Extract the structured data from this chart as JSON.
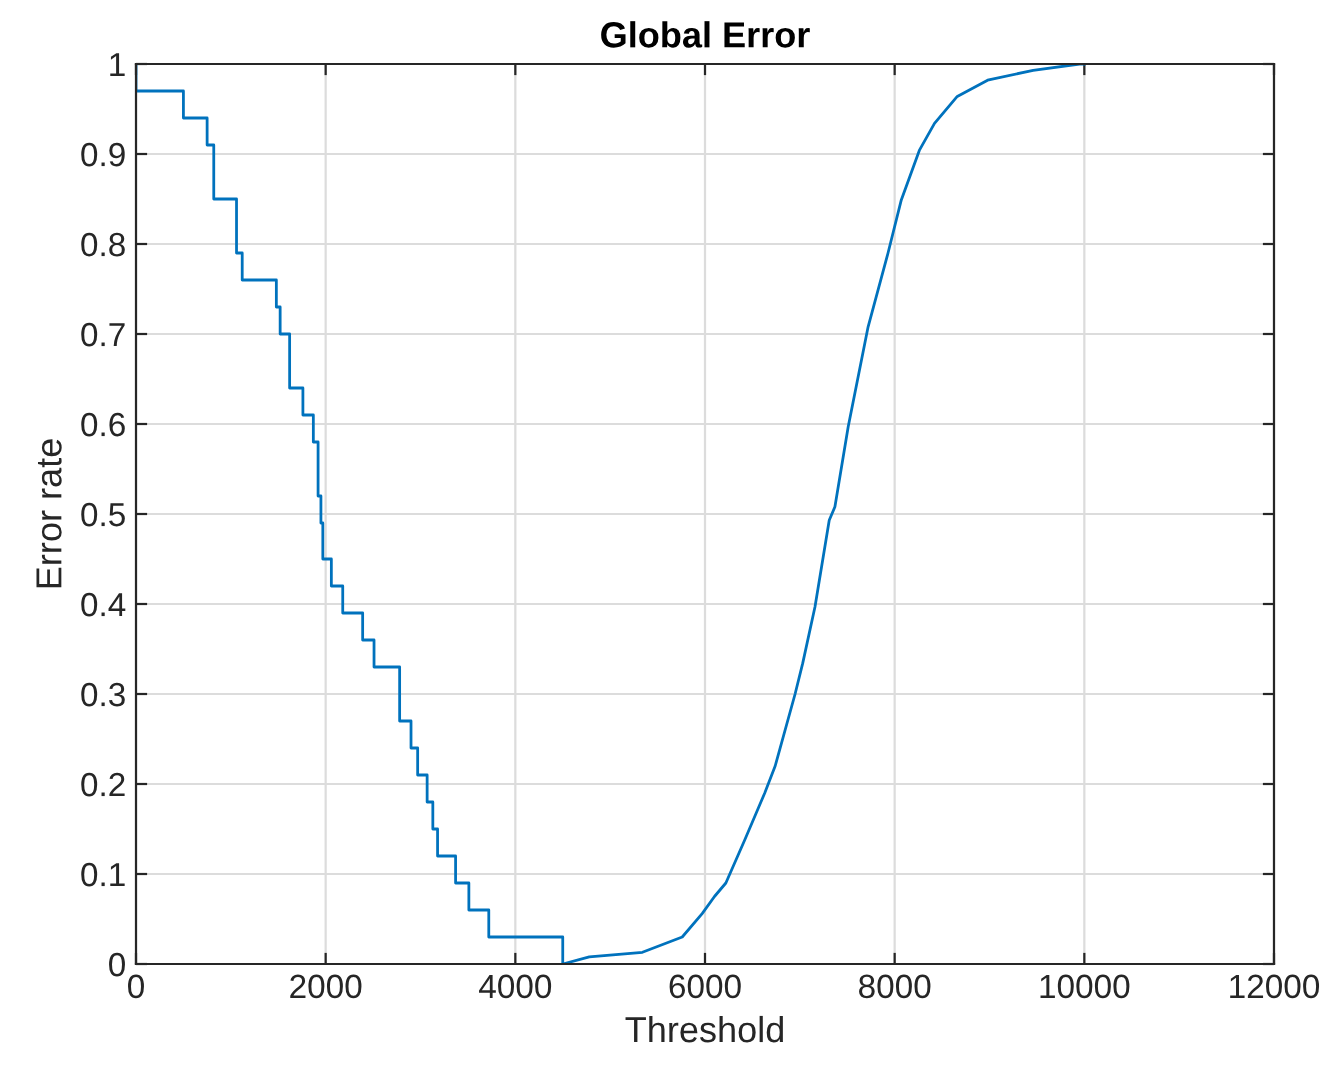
{
  "chart_data": {
    "type": "line",
    "title": "Global Error",
    "xlabel": "Threshold",
    "ylabel": "Error rate",
    "series": [
      {
        "type": "step",
        "color": "#0072bd",
        "x": [
          0,
          0,
          500,
          750,
          820,
          1060,
          1120,
          1480,
          1520,
          1620,
          1760,
          1870,
          1920,
          1950,
          1970,
          2060,
          2180,
          2390,
          2510,
          2780,
          2900,
          2970,
          3070,
          3130,
          3180,
          3370,
          3510,
          3720,
          4500
        ],
        "values": [
          1,
          0.97,
          0.94,
          0.91,
          0.85,
          0.79,
          0.76,
          0.73,
          0.7,
          0.64,
          0.61,
          0.58,
          0.52,
          0.49,
          0.45,
          0.42,
          0.39,
          0.36,
          0.33,
          0.27,
          0.24,
          0.21,
          0.18,
          0.15,
          0.12,
          0.09,
          0.06,
          0.03,
          0
        ]
      },
      {
        "color": "#0072bd",
        "x": [
          4500,
          4780,
          5340,
          5760,
          5970,
          6100,
          6220,
          6420,
          6630,
          6740,
          6950,
          7030,
          7160,
          7310,
          7370,
          7510,
          7720,
          7930,
          8070,
          8260,
          8420,
          8660,
          8980,
          9460,
          9950,
          10000
        ],
        "values": [
          0,
          0.008,
          0.013,
          0.03,
          0.056,
          0.075,
          0.09,
          0.138,
          0.19,
          0.22,
          0.3,
          0.334,
          0.397,
          0.493,
          0.508,
          0.597,
          0.708,
          0.79,
          0.849,
          0.904,
          0.934,
          0.964,
          0.982,
          0.993,
          1.0,
          1.0
        ]
      }
    ],
    "xlim": [
      0,
      12000
    ],
    "xticks": [
      0,
      2000,
      4000,
      6000,
      8000,
      10000,
      12000
    ],
    "ylim": [
      0,
      1
    ],
    "yticks": [
      0,
      0.1,
      0.2,
      0.3,
      0.4,
      0.5,
      0.6,
      0.7,
      0.8,
      0.9,
      1
    ],
    "grid": true
  }
}
